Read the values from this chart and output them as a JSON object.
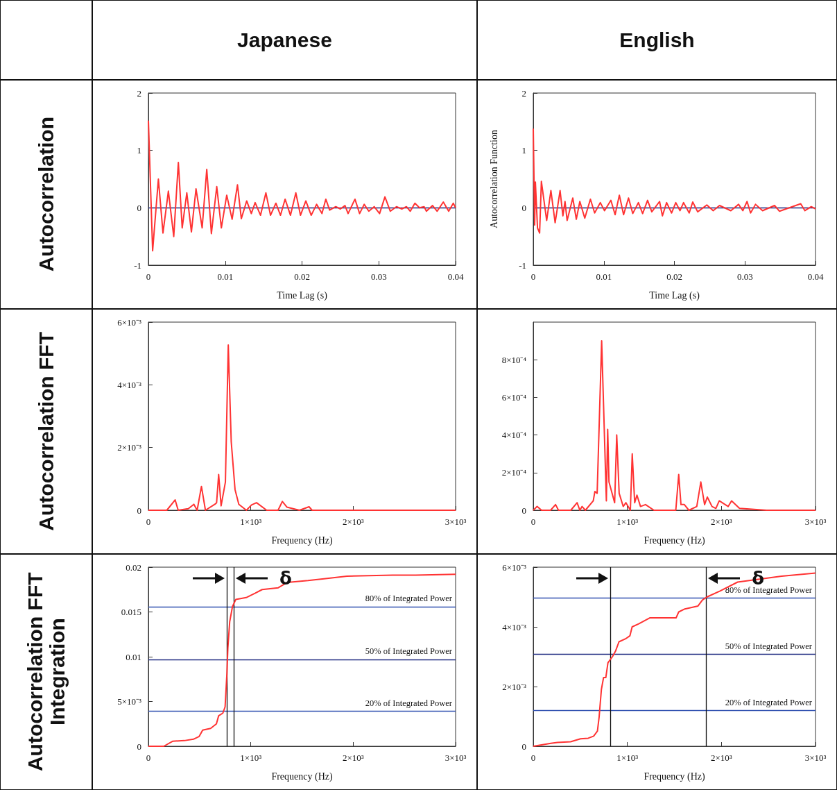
{
  "chart_data": [
    {
      "type": "line",
      "title": "Japanese",
      "xlabel": "Time Lag (s)",
      "annotations": [
        "Autocorrelation"
      ],
      "x": [
        0,
        0.00055,
        0.0013,
        0.0019,
        0.0026,
        0.0033,
        0.0039,
        0.0044,
        0.005,
        0.0056,
        0.0062,
        0.007,
        0.0076,
        0.0082,
        0.0089,
        0.0095,
        0.0102,
        0.0109,
        0.0116,
        0.0121,
        0.0128,
        0.0134,
        0.0139,
        0.0146,
        0.0153,
        0.0159,
        0.0166,
        0.0172,
        0.0178,
        0.0185,
        0.0192,
        0.0198,
        0.0205,
        0.0212,
        0.0219,
        0.0226,
        0.0231,
        0.0236,
        0.0244,
        0.025,
        0.0256,
        0.026,
        0.0269,
        0.0275,
        0.0281,
        0.0287,
        0.0294,
        0.0301,
        0.0308,
        0.0315,
        0.0323,
        0.033,
        0.0336,
        0.0341,
        0.0347,
        0.0353,
        0.0359,
        0.0362,
        0.037,
        0.0376,
        0.0384,
        0.0391,
        0.0397,
        0.04
      ],
      "series": [
        {
          "color": "#ff3333",
          "values": [
            1.52,
            -0.75,
            0.5,
            -0.44,
            0.29,
            -0.5,
            0.79,
            -0.35,
            0.26,
            -0.42,
            0.33,
            -0.35,
            0.67,
            -0.45,
            0.37,
            -0.35,
            0.22,
            -0.2,
            0.4,
            -0.19,
            0.12,
            -0.1,
            0.09,
            -0.13,
            0.26,
            -0.13,
            0.08,
            -0.13,
            0.15,
            -0.13,
            0.26,
            -0.13,
            0.12,
            -0.13,
            0.06,
            -0.1,
            0.15,
            -0.04,
            0.02,
            -0.02,
            0.04,
            -0.1,
            0.15,
            -0.1,
            0.06,
            -0.06,
            0.02,
            -0.1,
            0.19,
            -0.06,
            0.02,
            -0.02,
            0.02,
            -0.06,
            0.08,
            0,
            0.02,
            -0.06,
            0.04,
            -0.06,
            0.1,
            -0.06,
            0.08,
            0
          ]
        }
      ],
      "xlim": [
        0,
        0.04
      ],
      "ylim": [
        -1,
        2
      ],
      "xticks": [
        0,
        0.01,
        0.02,
        0.03,
        0.04
      ],
      "yticks": [
        -1,
        0,
        1,
        2
      ],
      "ref_lines": [
        {
          "axis": "y",
          "value": 0,
          "color": "#1f2a80"
        }
      ]
    },
    {
      "type": "line",
      "title": "English",
      "xlabel": "Time Lag (s)",
      "ylabel": "Autocorrelation Function",
      "x": [
        0,
        0.0002,
        0.0003,
        0.0006,
        0.0009,
        0.00115,
        0.0019,
        0.0025,
        0.0031,
        0.0038,
        0.0042,
        0.0045,
        0.0048,
        0.0056,
        0.0061,
        0.0066,
        0.0073,
        0.0081,
        0.0087,
        0.0095,
        0.0101,
        0.011,
        0.0116,
        0.0122,
        0.0128,
        0.0135,
        0.0141,
        0.0149,
        0.0155,
        0.0162,
        0.0168,
        0.0179,
        0.0183,
        0.0189,
        0.0196,
        0.0202,
        0.0208,
        0.0213,
        0.0221,
        0.0226,
        0.0233,
        0.0246,
        0.0255,
        0.0264,
        0.028,
        0.0291,
        0.0297,
        0.0303,
        0.0308,
        0.0315,
        0.0325,
        0.0342,
        0.0349,
        0.0379,
        0.0385,
        0.0394,
        0.04
      ],
      "series": [
        {
          "color": "#ff3333",
          "values": [
            1.38,
            -0.3,
            0.45,
            -0.35,
            -0.44,
            0.46,
            -0.22,
            0.3,
            -0.26,
            0.3,
            -0.14,
            0.11,
            -0.22,
            0.17,
            -0.2,
            0.11,
            -0.18,
            0.15,
            -0.09,
            0.09,
            -0.05,
            0.13,
            -0.12,
            0.22,
            -0.12,
            0.17,
            -0.1,
            0.09,
            -0.1,
            0.13,
            -0.07,
            0.11,
            -0.14,
            0.09,
            -0.09,
            0.09,
            -0.05,
            0.09,
            -0.09,
            0.1,
            -0.07,
            0.05,
            -0.05,
            0.04,
            -0.05,
            0.06,
            -0.05,
            0.11,
            -0.09,
            0.06,
            -0.05,
            0.04,
            -0.06,
            0.07,
            -0.05,
            0.02,
            -0.02
          ]
        }
      ],
      "xlim": [
        0,
        0.04
      ],
      "ylim": [
        -1,
        2
      ],
      "xticks": [
        0,
        0.01,
        0.02,
        0.03,
        0.04
      ],
      "yticks": [
        -1,
        0,
        1,
        2
      ],
      "ref_lines": [
        {
          "axis": "y",
          "value": 0,
          "color": "#1f2a80"
        }
      ]
    },
    {
      "type": "line",
      "xlabel": "Frequency (Hz)",
      "annotations": [
        "Autocorrelation FFT"
      ],
      "x": [
        0,
        180,
        261,
        291,
        390,
        444,
        476,
        518,
        557,
        649,
        666,
        686,
        710,
        752,
        780,
        809,
        846,
        883,
        957,
        1007,
        1056,
        1155,
        1266,
        1308,
        1352,
        1475,
        1569,
        1599,
        3000
      ],
      "series": [
        {
          "color": "#ff3333",
          "values": [
            0,
            0,
            0.00033,
            0,
            5e-05,
            0.00019,
            0,
            0.00076,
            0,
            0.00019,
            0.00024,
            0.00114,
            0.00014,
            0.0009,
            0.00527,
            0.00218,
            0.00066,
            0.00019,
            0,
            0.00017,
            0.00024,
            0,
            0,
            0.00028,
            0.0001,
            0,
            0.00011,
            0,
            0
          ]
        }
      ],
      "xlim": [
        0,
        3000
      ],
      "ylim": [
        0,
        0.006
      ],
      "xticks": [
        0,
        {
          "value": 1000,
          "label": "1×10³"
        },
        {
          "value": 2000,
          "label": "2×10³"
        },
        {
          "value": 3000,
          "label": "3×10³"
        }
      ],
      "yticks": [
        0,
        {
          "value": 0.002,
          "label": "2×10⁻³"
        },
        {
          "value": 0.004,
          "label": "4×10⁻³"
        },
        {
          "value": 0.006,
          "label": "6×10⁻³"
        }
      ]
    },
    {
      "type": "line",
      "xlabel": "Frequency (Hz)",
      "x": [
        0,
        41,
        88,
        184,
        237,
        268,
        399,
        466,
        495,
        519,
        554,
        638,
        655,
        679,
        727,
        777,
        791,
        805,
        865,
        887,
        913,
        956,
        985,
        1032,
        1052,
        1078,
        1102,
        1140,
        1193,
        1283,
        1451,
        1515,
        1546,
        1570,
        1606,
        1654,
        1738,
        1781,
        1821,
        1850,
        1900,
        1941,
        1977,
        2072,
        2108,
        2192,
        2478,
        3000
      ],
      "series": [
        {
          "color": "#ff3333",
          "values": [
            0,
            2e-05,
            0,
            0,
            3e-05,
            0,
            0,
            4e-05,
            0,
            2e-05,
            0,
            5e-05,
            0.0001,
            9e-05,
            0.0009,
            5e-05,
            0.00043,
            0.00015,
            4e-05,
            0.0004,
            9e-05,
            2e-05,
            4e-05,
            0,
            0.0003,
            4e-05,
            8e-05,
            2e-05,
            3e-05,
            0,
            0,
            0,
            0.00019,
            3e-05,
            3e-05,
            0,
            2e-05,
            0.00015,
            3e-05,
            7e-05,
            2e-05,
            1e-05,
            5e-05,
            2e-05,
            5e-05,
            1e-05,
            0,
            0
          ]
        }
      ],
      "xlim": [
        0,
        3000
      ],
      "ylim": [
        0,
        0.001
      ],
      "xticks": [
        0,
        {
          "value": 1000,
          "label": "1×10³"
        },
        {
          "value": 2000,
          "label": "2×10³"
        },
        {
          "value": 3000,
          "label": "3×10³"
        }
      ],
      "yticks": [
        0,
        {
          "value": 0.0002,
          "label": "2×10⁻⁴"
        },
        {
          "value": 0.0004,
          "label": "4×10⁻⁴"
        },
        {
          "value": 0.0006,
          "label": "6×10⁻⁴"
        },
        {
          "value": 0.0008,
          "label": "8×10⁻⁴"
        }
      ]
    },
    {
      "type": "line",
      "xlabel": "Frequency (Hz)",
      "annotations": [
        "Autocorrelation FFT Integration",
        "δ"
      ],
      "x": [
        0,
        150,
        239,
        351,
        440,
        496,
        530,
        608,
        664,
        686,
        727,
        749,
        767,
        776,
        794,
        821,
        854,
        955,
        1044,
        1111,
        1268,
        1357,
        1559,
        1715,
        1939,
        2386,
        2609,
        3000
      ],
      "series": [
        {
          "color": "#ff3333",
          "values": [
            0,
            0,
            0.00057,
            0.00063,
            0.00079,
            0.0011,
            0.0018,
            0.002,
            0.0025,
            0.0034,
            0.0037,
            0.0044,
            0.0082,
            0.011,
            0.0139,
            0.0156,
            0.0164,
            0.0166,
            0.0171,
            0.0175,
            0.0177,
            0.0183,
            0.0185,
            0.0187,
            0.019,
            0.0191,
            0.0191,
            0.0192
          ]
        }
      ],
      "xlim": [
        0,
        3000
      ],
      "ylim": [
        0,
        0.02
      ],
      "xticks": [
        0,
        {
          "value": 1000,
          "label": "1×10³"
        },
        {
          "value": 2000,
          "label": "2×10³"
        },
        {
          "value": 3000,
          "label": "3×10³"
        }
      ],
      "yticks": [
        0,
        {
          "value": 0.005,
          "label": "5×10⁻³"
        },
        0.01,
        0.015,
        0.02
      ],
      "ref_lines": [
        {
          "axis": "y",
          "value": 0.0156,
          "label": "80% of Integrated Power",
          "color": "#3050b0"
        },
        {
          "axis": "y",
          "value": 0.0097,
          "label": "50% of Integrated Power",
          "color": "#1f2a80"
        },
        {
          "axis": "y",
          "value": 0.0039,
          "label": "20% of Integrated Power",
          "color": "#3050b0"
        },
        {
          "axis": "x",
          "value": 767,
          "color": "#111111"
        },
        {
          "axis": "x",
          "value": 832,
          "color": "#111111"
        }
      ]
    },
    {
      "type": "line",
      "xlabel": "Frequency (Hz)",
      "annotations": [
        "δ"
      ],
      "x": [
        0,
        187,
        257,
        397,
        502,
        584,
        642,
        682,
        700,
        724,
        747,
        771,
        794,
        841,
        876,
        911,
        981,
        1027,
        1051,
        1121,
        1238,
        1518,
        1546,
        1611,
        1751,
        1798,
        1845,
        1985,
        2172,
        2405,
        2639,
        3000
      ],
      "series": [
        {
          "color": "#ff3333",
          "values": [
            0,
            0.0001,
            0.00013,
            0.00015,
            0.00025,
            0.00027,
            0.00034,
            0.00051,
            0.00098,
            0.0019,
            0.0023,
            0.0023,
            0.0028,
            0.003,
            0.0032,
            0.0035,
            0.0036,
            0.0037,
            0.004,
            0.0041,
            0.0043,
            0.0043,
            0.0045,
            0.0046,
            0.0047,
            0.0049,
            0.005,
            0.0052,
            0.0055,
            0.0056,
            0.0057,
            0.0058
          ]
        }
      ],
      "xlim": [
        0,
        3000
      ],
      "ylim": [
        0,
        0.006
      ],
      "xticks": [
        0,
        {
          "value": 1000,
          "label": "1×10³"
        },
        {
          "value": 2000,
          "label": "2×10³"
        },
        {
          "value": 3000,
          "label": "3×10³"
        }
      ],
      "yticks": [
        0,
        {
          "value": 0.002,
          "label": "2×10⁻³"
        },
        {
          "value": 0.004,
          "label": "4×10⁻³"
        },
        {
          "value": 0.006,
          "label": "6×10⁻³"
        }
      ],
      "ref_lines": [
        {
          "axis": "y",
          "value": 0.00496,
          "label": "80% of Integrated Power",
          "color": "#3050b0"
        },
        {
          "axis": "y",
          "value": 0.00309,
          "label": "50% of Integrated Power",
          "color": "#1f2a80"
        },
        {
          "axis": "y",
          "value": 0.0012,
          "label": "20% of Integrated Power",
          "color": "#3050b0"
        },
        {
          "axis": "x",
          "value": 817,
          "color": "#111111"
        },
        {
          "axis": "x",
          "value": 1837,
          "color": "#111111"
        }
      ]
    }
  ]
}
